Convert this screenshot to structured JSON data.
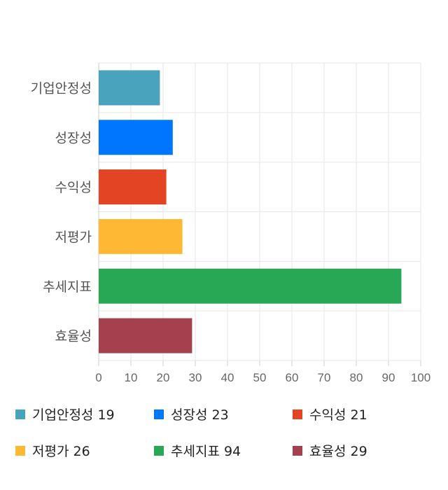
{
  "chart_data": {
    "type": "bar",
    "orientation": "horizontal",
    "categories": [
      "기업안정성",
      "성장성",
      "수익성",
      "저평가",
      "추세지표",
      "효율성"
    ],
    "values": [
      19,
      23,
      21,
      26,
      94,
      29
    ],
    "colors": [
      "#4aa3bc",
      "#0076ff",
      "#e34423",
      "#ffb833",
      "#28a754",
      "#a5404f"
    ],
    "xlim": [
      0,
      100
    ],
    "xticks": [
      0,
      10,
      20,
      30,
      40,
      50,
      60,
      70,
      80,
      90,
      100
    ],
    "grid": true,
    "legend_position": "bottom"
  }
}
